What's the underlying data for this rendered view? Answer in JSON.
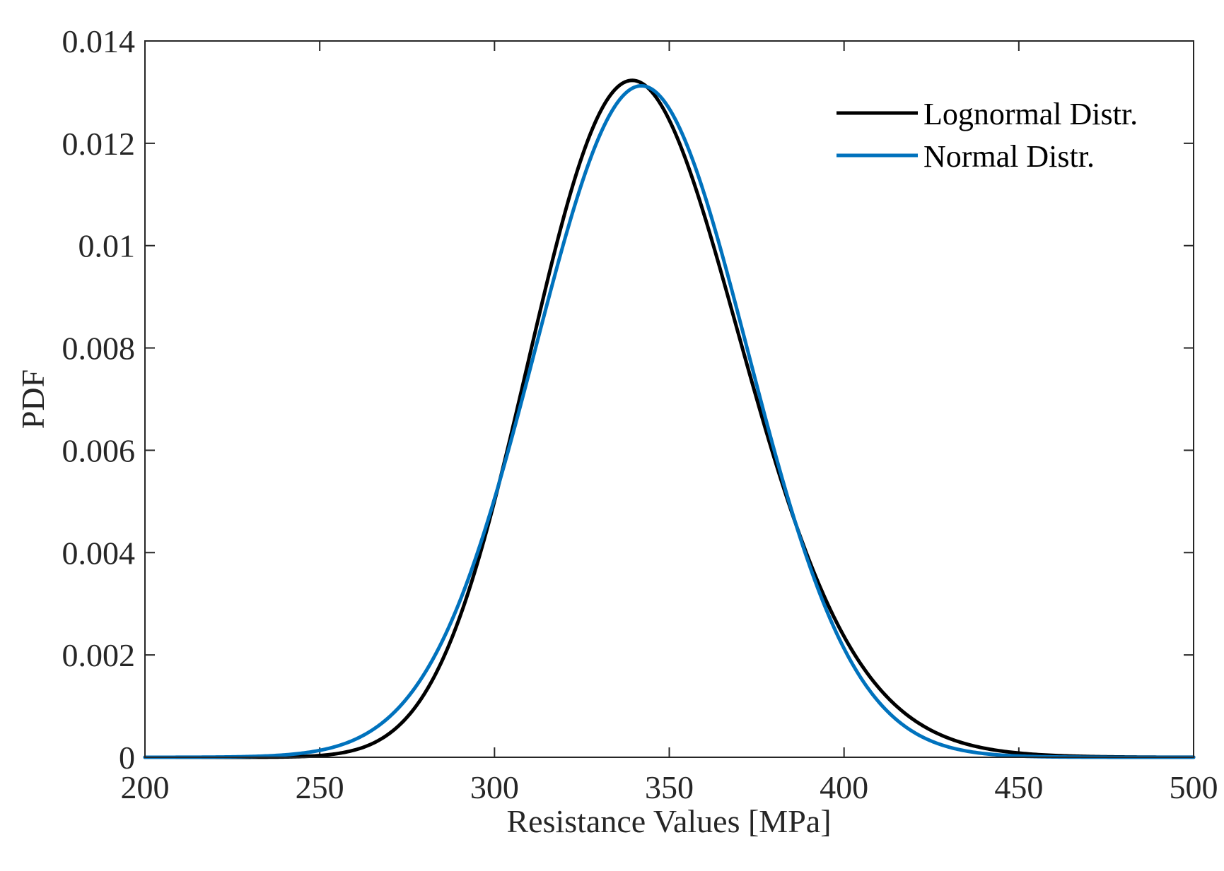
{
  "chart_data": {
    "type": "line",
    "title": "",
    "xlabel": "Resistance Values [MPa]",
    "ylabel": "PDF",
    "xlim": [
      200,
      500
    ],
    "ylim": [
      0,
      0.014
    ],
    "xticks": [
      200,
      250,
      300,
      350,
      400,
      450,
      500
    ],
    "xtick_labels": [
      "200",
      "250",
      "300",
      "350",
      "400",
      "450",
      "500"
    ],
    "yticks": [
      0,
      0.002,
      0.004,
      0.006,
      0.008,
      0.01,
      0.012,
      0.014
    ],
    "ytick_labels": [
      "0",
      "0.002",
      "0.004",
      "0.006",
      "0.008",
      "0.01",
      "0.012",
      "0.014"
    ],
    "grid": false,
    "legend_position": "top-right",
    "series": [
      {
        "name": "Lognormal Distr.",
        "color": "#000000",
        "distribution": "lognormal",
        "mu_log": 5.835,
        "sigma_log": 0.0885
      },
      {
        "name": "Normal Distr.",
        "color": "#0072BD",
        "distribution": "normal",
        "mean": 342,
        "std": 30.4
      }
    ]
  }
}
